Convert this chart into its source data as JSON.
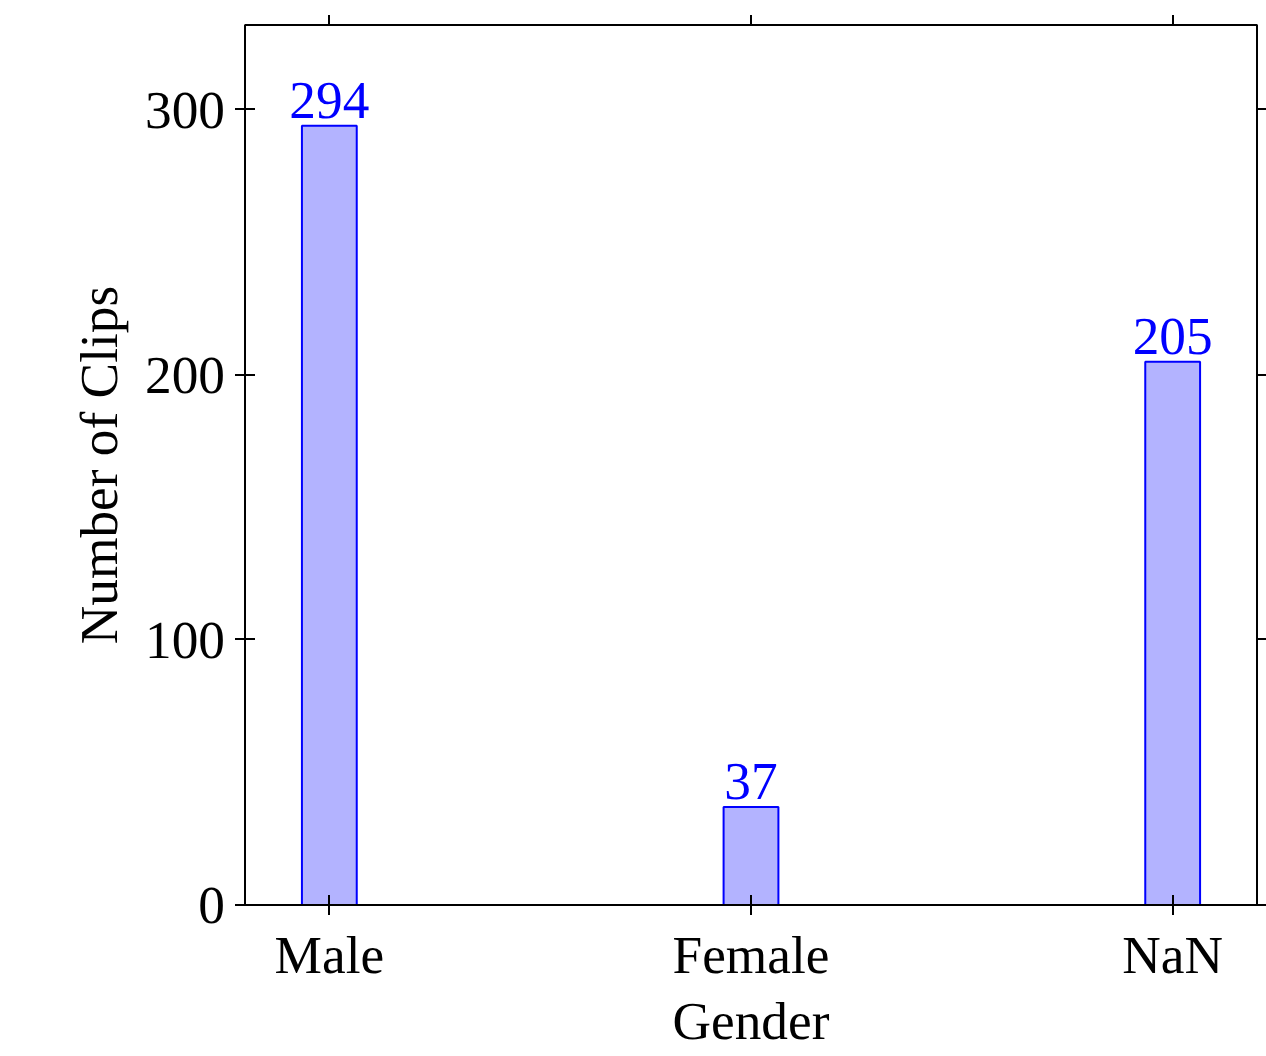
{
  "chart_data": {
    "type": "bar",
    "xlabel": "Gender",
    "ylabel": "Number of Clips",
    "categories": [
      "Male",
      "Female",
      "NaN"
    ],
    "values": [
      294,
      37,
      205
    ],
    "color": "#b3b3ff",
    "data_labels": true,
    "ylim": [
      0,
      332
    ],
    "yticks": [
      0,
      100,
      200,
      300
    ],
    "grid": false
  }
}
